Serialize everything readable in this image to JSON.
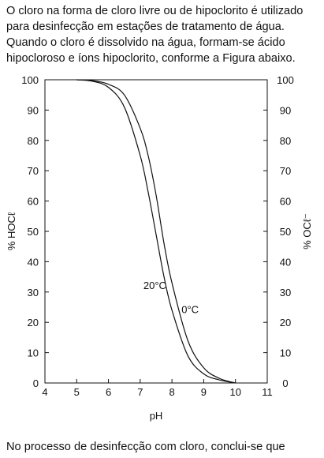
{
  "intro": {
    "lines": [
      "O cloro na forma de cloro livre ou de hipoclorito é utilizado",
      "para desinfecção em estações de tratamento de água.",
      "Quando o cloro é dissolvido na água, formam-se ácido",
      "hipocloroso e íons hipoclorito, conforme a Figura abaixo."
    ]
  },
  "outro": "No processo de desinfecção com cloro, conclui-se que",
  "chart_data": {
    "type": "line",
    "xlabel": "pH",
    "ylabel": "% HOCℓ",
    "y2label": "% OCℓ⁻",
    "xlim": [
      4,
      11
    ],
    "ylim": [
      0,
      100
    ],
    "xticks": [
      "4",
      "5",
      "6",
      "7",
      "8",
      "9",
      "10",
      "11"
    ],
    "yticks": [
      "0",
      "10",
      "20",
      "30",
      "40",
      "50",
      "60",
      "70",
      "80",
      "90",
      "100"
    ],
    "y2ticks": [
      "100",
      "90",
      "80",
      "70",
      "60",
      "50",
      "40",
      "30",
      "20",
      "10",
      "0"
    ],
    "grid": false,
    "series": [
      {
        "name": "20°C",
        "x": [
          5.0,
          5.5,
          6.0,
          6.5,
          7.0,
          7.25,
          7.5,
          7.75,
          8.0,
          8.5,
          9.0,
          9.5,
          10.0
        ],
        "y": [
          100,
          99.5,
          97.5,
          91,
          75,
          63,
          49,
          35,
          24,
          9,
          3,
          1,
          0
        ]
      },
      {
        "name": "0°C",
        "x": [
          5.0,
          5.5,
          6.0,
          6.5,
          7.0,
          7.25,
          7.5,
          7.75,
          8.0,
          8.5,
          9.0,
          9.5,
          10.0
        ],
        "y": [
          100,
          99.7,
          98.5,
          95,
          84,
          75,
          62,
          46,
          33,
          14,
          5,
          1.5,
          0
        ]
      }
    ],
    "annotations": [
      {
        "text": "20°C",
        "x": 7.1,
        "y": 31
      },
      {
        "text": "0°C",
        "x": 8.3,
        "y": 23
      }
    ]
  }
}
